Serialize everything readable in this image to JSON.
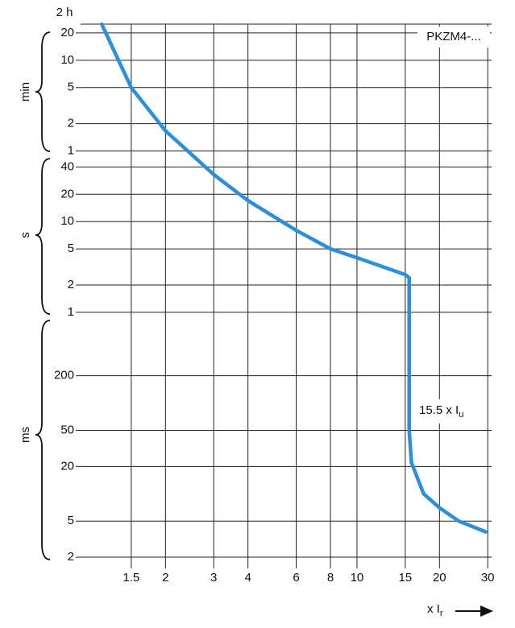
{
  "chart_data": {
    "type": "line",
    "x_scale": "log",
    "y_scale": "log",
    "grid": true,
    "color": "#2b8fdc",
    "x": [
      1.17,
      1.5,
      2,
      3,
      4,
      6,
      8,
      10,
      15,
      15.5,
      15.5,
      15.8,
      17.5,
      20,
      23.5,
      29.5
    ],
    "values": [
      1500,
      300,
      100,
      33,
      17,
      8,
      5,
      4,
      2.6,
      2.4,
      0.05,
      0.022,
      0.01,
      0.007,
      0.005,
      0.0038
    ],
    "xlim": [
      0.98,
      31
    ],
    "ylim": [
      0.0017,
      1500
    ],
    "xticks": [
      1.5,
      2,
      3,
      4,
      6,
      8,
      10,
      15,
      20,
      30
    ],
    "yticks": [
      {
        "value": 1200,
        "label": "20"
      },
      {
        "value": 600,
        "label": "10"
      },
      {
        "value": 300,
        "label": "5"
      },
      {
        "value": 120,
        "label": "2"
      },
      {
        "value": 60,
        "label": "1"
      },
      40,
      20,
      10,
      5,
      2,
      1,
      {
        "value": 0.2,
        "label": "200"
      },
      {
        "value": 0.05,
        "label": "50"
      },
      {
        "value": 0.02,
        "label": "20"
      },
      {
        "value": 0.005,
        "label": "5"
      },
      {
        "value": 0.002,
        "label": "2"
      }
    ],
    "y_top_label": "2 h",
    "y_units": [
      "min",
      "s",
      "ms"
    ],
    "x_label": {
      "text": "x I",
      "subscript": "r"
    },
    "annotations": [
      {
        "text": "PKZM4-..."
      },
      {
        "text": "15.5 x I",
        "subscript": "u"
      }
    ]
  }
}
